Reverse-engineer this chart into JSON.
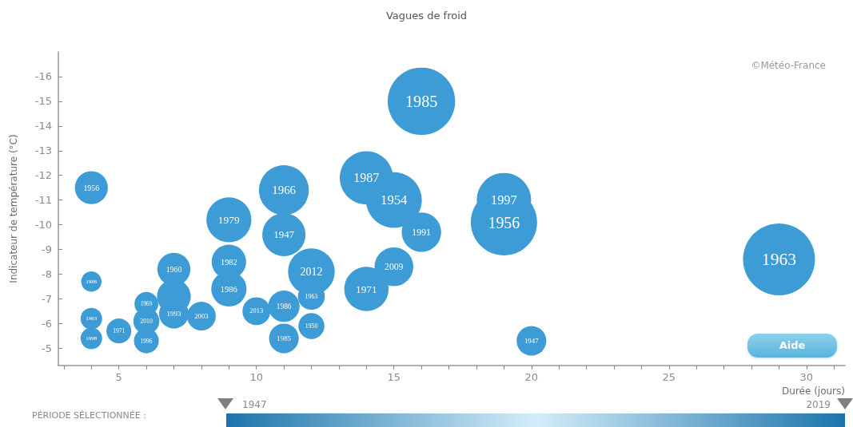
{
  "chart_data": {
    "type": "bubble",
    "title": "Vagues de froid",
    "xlabel": "Durée (jours)",
    "ylabel": "Indicateur de température (°C)",
    "x": [
      4,
      4,
      4,
      4,
      5,
      6,
      6,
      6,
      7,
      7,
      7,
      8,
      9,
      9,
      9,
      10,
      11,
      11,
      11,
      11,
      12,
      12,
      12,
      14,
      15,
      15,
      14,
      16,
      16,
      19,
      19,
      20,
      29
    ],
    "values": [
      -11.5,
      -7.7,
      -6.2,
      -5.4,
      -5.7,
      -6.8,
      -5.3,
      -6.1,
      -8.2,
      -7.1,
      -6.4,
      -6.3,
      -10.2,
      -8.5,
      -7.4,
      -6.5,
      -11.4,
      -9.6,
      -6.7,
      -5.4,
      -7.1,
      -5.9,
      -8.1,
      -7.4,
      -8.3,
      -11,
      -11.9,
      -9.7,
      -15,
      -10.1,
      -11,
      -5.3,
      -8.6
    ],
    "sizes": [
      0.21,
      0.08,
      0.09,
      0.09,
      0.12,
      0.11,
      0.12,
      0.13,
      0.21,
      0.22,
      0.17,
      0.16,
      0.39,
      0.23,
      0.24,
      0.15,
      0.48,
      0.36,
      0.19,
      0.17,
      0.14,
      0.13,
      0.42,
      0.38,
      0.29,
      0.6,
      0.55,
      0.3,
      0.88,
      0.85,
      0.57,
      0.17,
      1
    ],
    "color": "#3d9bd6",
    "xlim": [
      2.8,
      31.4
    ],
    "ylim": [
      -4.3,
      -17
    ],
    "xticks": [
      {
        "value": 3,
        "label": null
      },
      {
        "value": 4,
        "label": null
      },
      5,
      {
        "value": 6,
        "label": null
      },
      {
        "value": 7,
        "label": null
      },
      {
        "value": 8,
        "label": null
      },
      {
        "value": 9,
        "label": null
      },
      10,
      {
        "value": 11,
        "label": null
      },
      {
        "value": 12,
        "label": null
      },
      {
        "value": 13,
        "label": null
      },
      {
        "value": 14,
        "label": null
      },
      15,
      {
        "value": 16,
        "label": null
      },
      {
        "value": 17,
        "label": null
      },
      {
        "value": 18,
        "label": null
      },
      {
        "value": 19,
        "label": null
      },
      20,
      {
        "value": 21,
        "label": null
      },
      {
        "value": 22,
        "label": null
      },
      {
        "value": 23,
        "label": null
      },
      {
        "value": 24,
        "label": null
      },
      25,
      {
        "value": 26,
        "label": null
      },
      {
        "value": 27,
        "label": null
      },
      {
        "value": 28,
        "label": null
      },
      {
        "value": 29,
        "label": null
      },
      30,
      {
        "value": 31,
        "label": null
      }
    ],
    "yticks": [
      -5,
      -6,
      -7,
      -8,
      -9,
      -10,
      -11,
      -12,
      -13,
      -14,
      -15,
      -16
    ],
    "grid": false,
    "annotations": [
      "©Météo-France",
      "Aide",
      "PÉRIODE SÉLECTIONNÉE :",
      "1947",
      "2019",
      {
        "text": "1956",
        "x": 4,
        "y": -11.5
      },
      {
        "text": "1986",
        "x": 4,
        "y": -7.7
      },
      {
        "text": "1963",
        "x": 4,
        "y": -6.2
      },
      {
        "text": "1998",
        "x": 4,
        "y": -5.4
      },
      {
        "text": "1971",
        "x": 5,
        "y": -5.7
      },
      {
        "text": "1969",
        "x": 6,
        "y": -6.8
      },
      {
        "text": "1996",
        "x": 6,
        "y": -5.3
      },
      {
        "text": "2010",
        "x": 6,
        "y": -6.1
      },
      {
        "text": "1960",
        "x": 7,
        "y": -8.2
      },
      {
        "text": "1993",
        "x": 7,
        "y": -6.4
      },
      {
        "text": "2003",
        "x": 8,
        "y": -6.3
      },
      {
        "text": "1979",
        "x": 9,
        "y": -10.2
      },
      {
        "text": "1982",
        "x": 9,
        "y": -8.5
      },
      {
        "text": "1986",
        "x": 9,
        "y": -7.4
      },
      {
        "text": "2013",
        "x": 10,
        "y": -6.5
      },
      {
        "text": "1966",
        "x": 11,
        "y": -11.4
      },
      {
        "text": "1947",
        "x": 11,
        "y": -9.6
      },
      {
        "text": "1986",
        "x": 11,
        "y": -6.7
      },
      {
        "text": "1985",
        "x": 11,
        "y": -5.4
      },
      {
        "text": "1963",
        "x": 12,
        "y": -7.1
      },
      {
        "text": "1950",
        "x": 12,
        "y": -5.9
      },
      {
        "text": "2012",
        "x": 12,
        "y": -8.1
      },
      {
        "text": "1971",
        "x": 14,
        "y": -7.4
      },
      {
        "text": "2009",
        "x": 15,
        "y": -8.3
      },
      {
        "text": "1954",
        "x": 15,
        "y": -11
      },
      {
        "text": "1987",
        "x": 14,
        "y": -11.9
      },
      {
        "text": "1991",
        "x": 16,
        "y": -9.7
      },
      {
        "text": "1985",
        "x": 16,
        "y": -15
      },
      {
        "text": "1956",
        "x": 19,
        "y": -10.1
      },
      {
        "text": "1997",
        "x": 19,
        "y": -11
      },
      {
        "text": "1947",
        "x": 20,
        "y": -5.3
      },
      {
        "text": "1963",
        "x": 29,
        "y": -8.6
      }
    ]
  }
}
